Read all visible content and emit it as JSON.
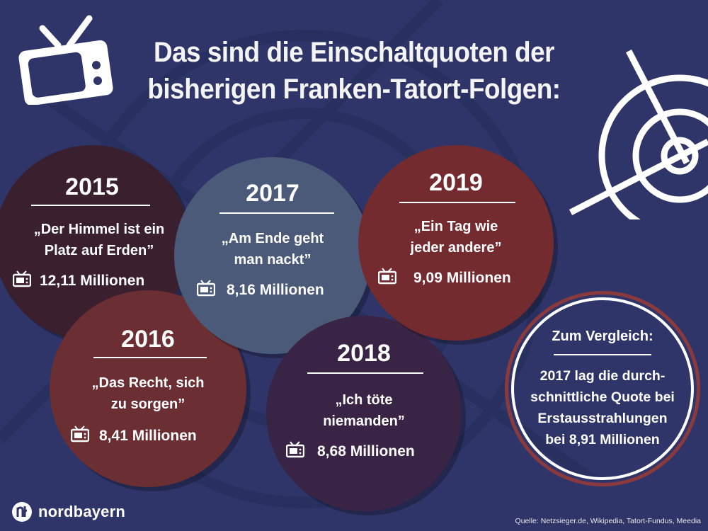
{
  "title_line1": "Das sind die Einschaltquoten der",
  "title_line2": "bisherigen Franken-Tatort-Folgen:",
  "icons": {
    "top_left": "tv-icon",
    "top_right": "crosshair-target-icon",
    "per_item": "tv-icon",
    "logo": "nordbayern-logo"
  },
  "colors": {
    "background": "#2f3568",
    "c2015": "#3a1f2e",
    "c2016": "#6a2e33",
    "c2017": "#4a5a78",
    "c2018": "#3a2445",
    "c2019": "#732b30",
    "compare_ring": "#8a3a3c"
  },
  "chart_data": {
    "type": "table",
    "columns": [
      "year",
      "title",
      "viewers"
    ],
    "rows": [
      {
        "year": "2015",
        "title": "„Der Himmel ist ein Platz auf Erden”",
        "viewers_label": "12,11 Millionen",
        "viewers_millions": 12.11
      },
      {
        "year": "2016",
        "title": "„Das Recht, sich zu sorgen”",
        "viewers_label": "8,41 Millionen",
        "viewers_millions": 8.41
      },
      {
        "year": "2017",
        "title": "„Am Ende geht man nackt”",
        "viewers_label": "8,16 Millionen",
        "viewers_millions": 8.16
      },
      {
        "year": "2018",
        "title": "„Ich töte niemanden”",
        "viewers_label": "8,68 Millionen",
        "viewers_millions": 8.68
      },
      {
        "year": "2019",
        "title": "„Ein Tag wie jeder andere”",
        "viewers_label": "9,09 Millionen",
        "viewers_millions": 9.09
      }
    ],
    "quote_lines": {
      "2015": [
        "„Der Himmel ist ein",
        "Platz auf Erden”"
      ],
      "2016": [
        "„Das Recht, sich",
        "zu sorgen”"
      ],
      "2017": [
        "„Am Ende geht",
        "man nackt”"
      ],
      "2018": [
        "„Ich töte",
        "niemanden”"
      ],
      "2019": [
        "„Ein Tag wie",
        "jeder andere”"
      ]
    }
  },
  "comparison": {
    "heading": "Zum Vergleich:",
    "lines": [
      "2017 lag die durch-",
      "schnittliche Quote bei",
      "Erstausstrahlungen",
      "bei 8,91 Millionen"
    ]
  },
  "brand": "nordbayern",
  "source": "Quelle: Netzsieger.de, Wikipedia, Tatort-Fundus, Meedia"
}
